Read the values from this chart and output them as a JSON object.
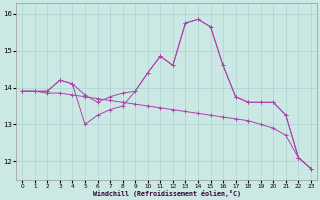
{
  "xlabel": "Windchill (Refroidissement éolien,°C)",
  "background_color": "#cce8e4",
  "grid_color": "#aad4d0",
  "line_color": "#aa44aa",
  "x": [
    0,
    1,
    2,
    3,
    4,
    5,
    6,
    7,
    8,
    9,
    10,
    11,
    12,
    13,
    14,
    15,
    16,
    17,
    18,
    19,
    20,
    21,
    22,
    23
  ],
  "line1": [
    13.9,
    13.9,
    13.9,
    14.2,
    14.1,
    13.8,
    13.6,
    13.75,
    13.85,
    13.9,
    14.4,
    14.85,
    14.6,
    15.75,
    15.85,
    15.65,
    14.6,
    13.75,
    13.6,
    13.6,
    13.6,
    13.25,
    12.1,
    11.8
  ],
  "line2": [
    13.9,
    13.9,
    13.9,
    14.2,
    14.1,
    13.0,
    13.25,
    13.4,
    13.5,
    13.9,
    14.4,
    14.85,
    14.6,
    15.75,
    15.85,
    15.65,
    14.6,
    13.75,
    13.6,
    13.6,
    13.6,
    13.25,
    12.1,
    11.8
  ],
  "line3": [
    13.9,
    13.9,
    13.85,
    13.85,
    13.8,
    13.75,
    13.7,
    13.65,
    13.6,
    13.55,
    13.5,
    13.45,
    13.4,
    13.35,
    13.3,
    13.25,
    13.2,
    13.15,
    13.1,
    13.0,
    12.9,
    12.7,
    12.1,
    11.8
  ],
  "ylim": [
    11.5,
    16.3
  ],
  "xlim": [
    -0.5,
    23.5
  ],
  "yticks": [
    12,
    13,
    14,
    15,
    16
  ],
  "xticks": [
    0,
    1,
    2,
    3,
    4,
    5,
    6,
    7,
    8,
    9,
    10,
    11,
    12,
    13,
    14,
    15,
    16,
    17,
    18,
    19,
    20,
    21,
    22,
    23
  ]
}
